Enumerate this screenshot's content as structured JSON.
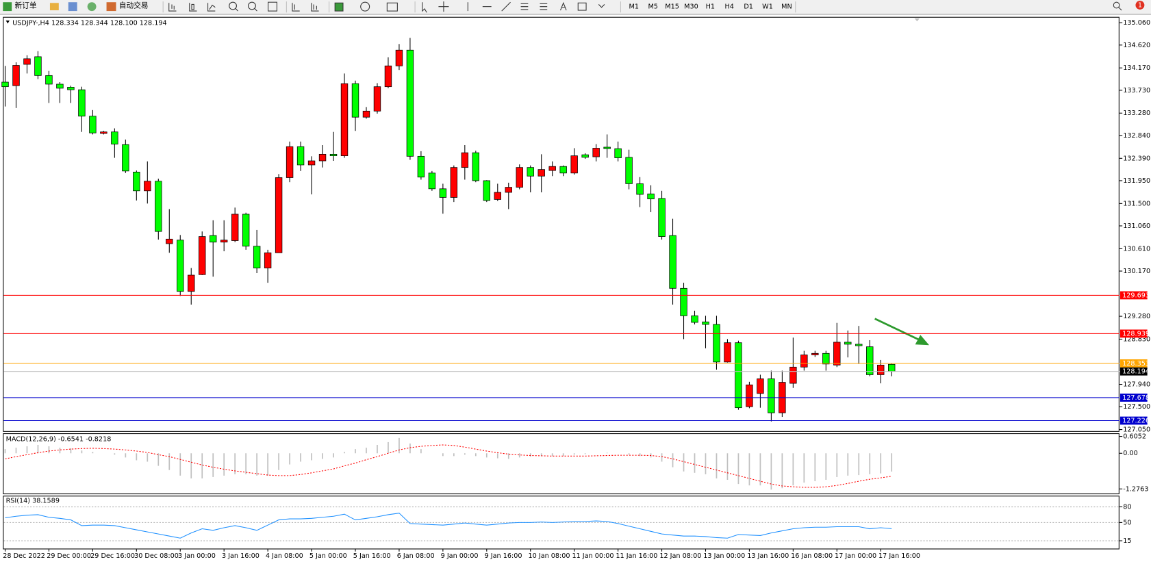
{
  "toolbar": {
    "new_order": "新订单",
    "auto_trading": "自动交易",
    "timeframes": [
      "M1",
      "M5",
      "M15",
      "M30",
      "H1",
      "H4",
      "D1",
      "W1",
      "MN"
    ],
    "notifications": 1
  },
  "chart_data": [
    {
      "type": "candlestick",
      "title": "USDJPY-,H4  128.334 128.344 128.100 128.194",
      "up_color": "#ff0000",
      "down_color": "#00ff00",
      "categories": [
        "28 Dec 2022",
        null,
        null,
        null,
        "29 Dec 00:00",
        null,
        null,
        null,
        "29 Dec 16:00",
        null,
        null,
        null,
        "30 Dec 08:00",
        null,
        null,
        null,
        "3 Jan 00:00",
        null,
        null,
        null,
        "3 Jan 16:00",
        null,
        null,
        null,
        "4 Jan 08:00",
        null,
        null,
        null,
        "5 Jan 00:00",
        null,
        null,
        null,
        "5 Jan 16:00",
        null,
        null,
        null,
        "6 Jan 08:00",
        null,
        null,
        null,
        "9 Jan 00:00",
        null,
        null,
        null,
        "9 Jan 16:00",
        null,
        null,
        null,
        "10 Jan 08:00",
        null,
        null,
        null,
        "11 Jan 00:00",
        null,
        null,
        null,
        "11 Jan 16:00",
        null,
        null,
        null,
        "12 Jan 08:00",
        null,
        null,
        null,
        "13 Jan 00:00",
        null,
        null,
        null,
        "13 Jan 16:00",
        null,
        null,
        null,
        "16 Jan 08:00",
        null,
        null,
        null,
        "17 Jan 00:00",
        null,
        null,
        null,
        "17 Jan 16:00",
        null
      ],
      "open": [
        133.89,
        133.82,
        134.24,
        134.39,
        134.02,
        133.85,
        133.79,
        133.74,
        133.22,
        132.88,
        132.91,
        132.66,
        132.12,
        131.75,
        131.94,
        130.71,
        130.78,
        129.77,
        130.1,
        130.87,
        130.74,
        130.77,
        131.29,
        130.66,
        130.23,
        130.53,
        132.01,
        132.62,
        132.26,
        132.34,
        132.47,
        132.44,
        133.86,
        133.2,
        133.32,
        133.8,
        134.21,
        134.52,
        132.43,
        132.1,
        131.79,
        131.62,
        132.21,
        132.5,
        131.95,
        131.58,
        131.72,
        131.82,
        132.21,
        132.04,
        132.15,
        132.23,
        132.1,
        132.46,
        132.42,
        132.61,
        132.58,
        132.41,
        131.89,
        131.69,
        131.6,
        130.87,
        129.83,
        129.29,
        129.17,
        129.12,
        128.38,
        128.76,
        127.5,
        127.76,
        128.05,
        127.38,
        127.96,
        128.28,
        128.52,
        128.55,
        128.32,
        128.77,
        128.73,
        128.68,
        128.13,
        128.334
      ],
      "high": [
        134.21,
        134.28,
        134.42,
        134.5,
        134.11,
        133.89,
        133.82,
        133.8,
        133.34,
        132.93,
        132.98,
        132.76,
        132.15,
        132.33,
        131.99,
        131.39,
        130.88,
        130.23,
        130.95,
        131.17,
        131.17,
        131.42,
        131.32,
        130.98,
        130.59,
        132.08,
        132.72,
        132.72,
        132.43,
        132.65,
        132.91,
        134.06,
        133.92,
        133.4,
        133.87,
        134.38,
        134.64,
        134.76,
        132.53,
        132.14,
        131.89,
        132.25,
        132.65,
        132.54,
        131.96,
        131.89,
        131.91,
        132.27,
        132.25,
        132.47,
        132.33,
        132.25,
        132.59,
        132.49,
        132.67,
        132.86,
        132.72,
        132.56,
        132.02,
        131.86,
        131.75,
        131.2,
        129.94,
        129.39,
        129.29,
        129.29,
        128.83,
        128.8,
        127.99,
        128.13,
        128.21,
        128.21,
        128.86,
        128.6,
        128.6,
        128.6,
        129.15,
        129.0,
        129.09,
        128.81,
        128.42,
        128.344
      ],
      "low": [
        133.41,
        133.38,
        134.06,
        133.95,
        133.48,
        133.48,
        133.48,
        132.91,
        132.86,
        132.86,
        132.4,
        132.1,
        131.56,
        131.5,
        130.79,
        130.53,
        129.68,
        129.51,
        130.09,
        130.06,
        130.56,
        130.74,
        130.59,
        130.13,
        129.94,
        130.53,
        131.92,
        132.14,
        131.68,
        132.21,
        132.34,
        132.4,
        132.93,
        133.17,
        133.27,
        133.77,
        134.13,
        132.36,
        131.97,
        131.75,
        131.3,
        131.53,
        131.97,
        131.92,
        131.53,
        131.55,
        131.39,
        131.78,
        131.72,
        131.72,
        132.04,
        132.04,
        132.07,
        132.38,
        132.33,
        132.4,
        132.33,
        131.78,
        131.43,
        131.33,
        130.79,
        129.51,
        128.83,
        129.12,
        128.65,
        128.23,
        128.37,
        127.44,
        127.47,
        127.48,
        127.21,
        127.3,
        127.87,
        128.21,
        128.48,
        128.21,
        128.28,
        128.47,
        128.34,
        128.1,
        127.96,
        128.1
      ],
      "close": [
        133.8,
        134.22,
        134.35,
        134.02,
        133.85,
        133.77,
        133.74,
        133.22,
        132.89,
        132.91,
        132.67,
        132.14,
        131.75,
        131.94,
        130.95,
        130.8,
        129.77,
        130.09,
        130.85,
        130.74,
        130.78,
        131.29,
        130.66,
        130.23,
        130.53,
        132.01,
        132.62,
        132.26,
        132.34,
        132.47,
        132.44,
        133.86,
        133.2,
        133.32,
        133.8,
        134.21,
        134.52,
        132.43,
        132.02,
        131.79,
        131.62,
        132.21,
        132.5,
        131.95,
        131.56,
        131.72,
        131.82,
        132.21,
        132.04,
        132.17,
        132.23,
        132.1,
        132.44,
        132.41,
        132.59,
        132.58,
        132.4,
        131.89,
        131.68,
        131.59,
        130.85,
        129.83,
        129.29,
        129.16,
        129.12,
        128.38,
        128.76,
        127.48,
        127.93,
        128.05,
        127.38,
        127.98,
        128.28,
        128.52,
        128.55,
        128.34,
        128.77,
        128.73,
        128.7,
        128.13,
        128.32,
        128.194
      ],
      "ylim": [
        127.02,
        135.16
      ],
      "yticks": [
        {
          "value": 135.06,
          "label": "135.060"
        },
        {
          "value": 134.62,
          "label": "134.620"
        },
        {
          "value": 134.17,
          "label": "134.170"
        },
        {
          "value": 133.73,
          "label": "133.730"
        },
        {
          "value": 133.28,
          "label": "133.280"
        },
        {
          "value": 132.84,
          "label": "132.840"
        },
        {
          "value": 132.39,
          "label": "132.390"
        },
        {
          "value": 131.95,
          "label": "131.950"
        },
        {
          "value": 131.5,
          "label": "131.500"
        },
        {
          "value": 131.06,
          "label": "131.060"
        },
        {
          "value": 130.61,
          "label": "130.610"
        },
        {
          "value": 130.17,
          "label": "130.170"
        },
        {
          "value": 129.28,
          "label": "129.280"
        },
        {
          "value": 128.83,
          "label": "128.830"
        },
        {
          "value": 127.94,
          "label": "127.940"
        },
        {
          "value": 127.5,
          "label": "127.500"
        },
        {
          "value": 127.05,
          "label": "127.050"
        }
      ],
      "grid": false,
      "hlines": [
        {
          "value": 129.693,
          "color": "#ff0000",
          "label_color": "#ff0000"
        },
        {
          "value": 128.939,
          "color": "#ff0000",
          "label_color": "#ff0000"
        },
        {
          "value": 128.353,
          "color": "#ffa500",
          "label_color": "#ffa500"
        },
        {
          "value": 128.194,
          "color": "#c0c0c0",
          "label_color": "#000000"
        },
        {
          "value": 127.678,
          "color": "#0000cd",
          "label_color": "#0000cd"
        },
        {
          "value": 127.226,
          "color": "#0000cd",
          "label_color": "#0000cd"
        }
      ]
    },
    {
      "type": "macd",
      "title": "MACD(12,26,9) -0.6541 -0.8218",
      "series": [
        {
          "color": "#c0c0c0",
          "style": "histogram",
          "values": [
            0.15,
            0.2,
            0.25,
            0.3,
            0.25,
            0.2,
            0.18,
            0.1,
            0.05,
            0.0,
            -0.05,
            -0.15,
            -0.25,
            -0.3,
            -0.45,
            -0.6,
            -0.8,
            -0.9,
            -0.9,
            -0.85,
            -0.8,
            -0.75,
            -0.75,
            -0.8,
            -0.8,
            -0.6,
            -0.4,
            -0.3,
            -0.25,
            -0.2,
            -0.15,
            0.05,
            0.15,
            0.2,
            0.3,
            0.4,
            0.55,
            0.35,
            0.15,
            0.0,
            -0.1,
            -0.1,
            -0.05,
            -0.1,
            -0.15,
            -0.18,
            -0.2,
            -0.15,
            -0.12,
            -0.1,
            -0.1,
            -0.1,
            -0.05,
            -0.03,
            0.0,
            0.02,
            0.0,
            -0.05,
            -0.1,
            -0.15,
            -0.3,
            -0.5,
            -0.65,
            -0.7,
            -0.75,
            -0.9,
            -0.95,
            -1.1,
            -1.15,
            -1.15,
            -1.3,
            -1.25,
            -1.15,
            -1.05,
            -1.0,
            -0.95,
            -0.85,
            -0.8,
            -0.78,
            -0.75,
            -0.72,
            -0.6541
          ]
        },
        {
          "color": "#ff0000",
          "style": "dotted",
          "values": [
            -0.2,
            -0.12,
            -0.05,
            0.02,
            0.08,
            0.12,
            0.15,
            0.17,
            0.18,
            0.17,
            0.15,
            0.12,
            0.08,
            0.03,
            -0.05,
            -0.12,
            -0.22,
            -0.32,
            -0.42,
            -0.5,
            -0.57,
            -0.63,
            -0.68,
            -0.73,
            -0.78,
            -0.8,
            -0.8,
            -0.76,
            -0.7,
            -0.63,
            -0.56,
            -0.45,
            -0.35,
            -0.23,
            -0.12,
            0.0,
            0.12,
            0.2,
            0.25,
            0.28,
            0.3,
            0.28,
            0.22,
            0.15,
            0.08,
            0.02,
            -0.03,
            -0.06,
            -0.08,
            -0.09,
            -0.1,
            -0.1,
            -0.1,
            -0.1,
            -0.09,
            -0.08,
            -0.07,
            -0.07,
            -0.07,
            -0.08,
            -0.12,
            -0.2,
            -0.3,
            -0.4,
            -0.5,
            -0.6,
            -0.7,
            -0.8,
            -0.9,
            -1.0,
            -1.1,
            -1.17,
            -1.2,
            -1.22,
            -1.22,
            -1.2,
            -1.15,
            -1.08,
            -1.0,
            -0.93,
            -0.88,
            -0.8218
          ]
        }
      ],
      "ylim": [
        -1.44,
        0.69
      ],
      "yticks": [
        0.6052,
        {
          "value": 0,
          "label": "0.00"
        },
        -1.2763
      ],
      "grid": false
    },
    {
      "type": "line",
      "title": "RSI(14) 38.1589",
      "color": "#1e90ff",
      "values": [
        59,
        62,
        64,
        65,
        60,
        58,
        55,
        44,
        45,
        45,
        44,
        40,
        36,
        32,
        28,
        24,
        20,
        30,
        38,
        35,
        40,
        44,
        40,
        35,
        45,
        55,
        57,
        57,
        58,
        60,
        62,
        66,
        55,
        58,
        61,
        65,
        68,
        48,
        47,
        46,
        45,
        47,
        49,
        47,
        45,
        47,
        49,
        50,
        50,
        51,
        50,
        51,
        52,
        52,
        53,
        52,
        48,
        43,
        38,
        33,
        28,
        26,
        24,
        24,
        23,
        21,
        20,
        27,
        26,
        25,
        30,
        34,
        38,
        40,
        41,
        41,
        42,
        42,
        42,
        38,
        40,
        38.1589
      ],
      "ylim": [
        0,
        100
      ],
      "yticks": [
        80,
        50,
        15
      ],
      "grid": true
    }
  ]
}
